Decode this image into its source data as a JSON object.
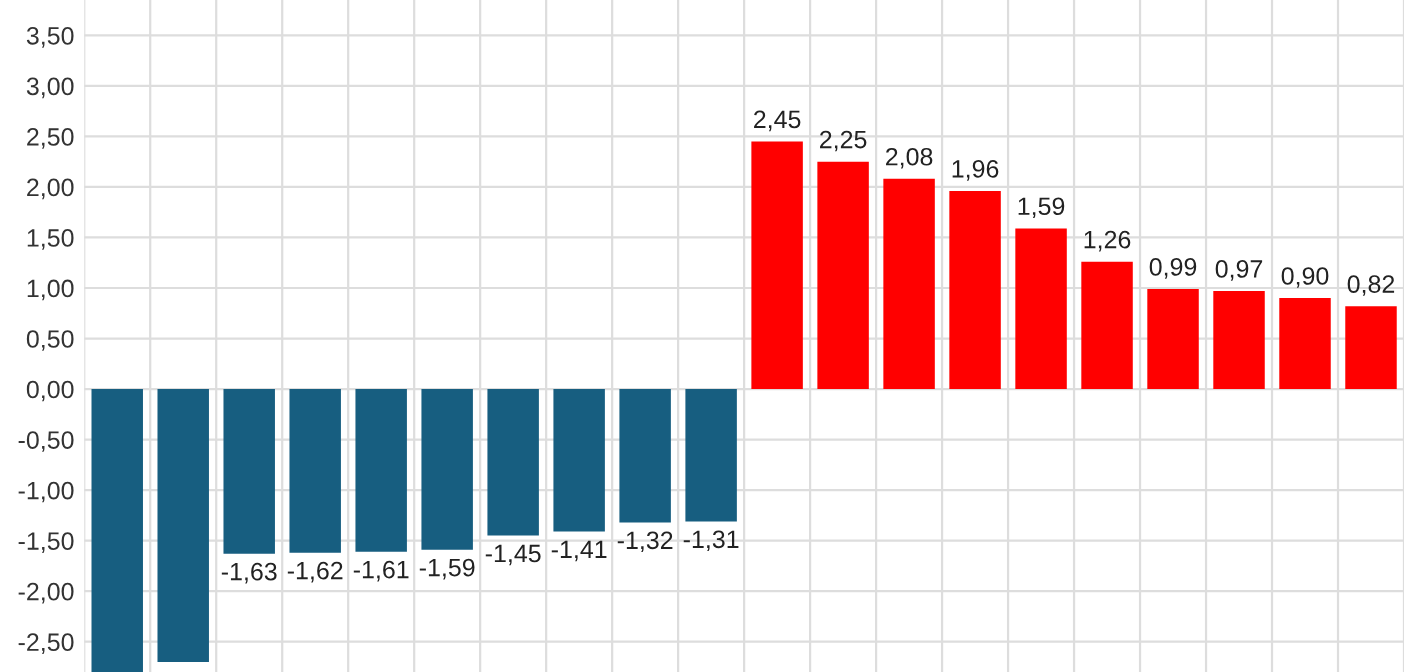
{
  "chart_data": {
    "type": "bar",
    "categories": [
      null,
      null,
      null,
      null,
      null,
      null,
      null,
      null,
      null,
      null,
      null,
      null,
      null,
      null,
      null,
      null,
      null,
      null,
      null,
      null
    ],
    "values": [
      -2.8,
      -2.7,
      -1.63,
      -1.62,
      -1.61,
      -1.59,
      -1.45,
      -1.41,
      -1.32,
      -1.31,
      2.45,
      2.25,
      2.08,
      1.96,
      1.59,
      1.26,
      0.99,
      0.97,
      0.9,
      0.82
    ],
    "value_labels": [
      null,
      null,
      "-1,63",
      "-1,62",
      "-1,61",
      "-1,59",
      "-1,45",
      "-1,41",
      "-1,32",
      "-1,31",
      "2,45",
      "2,25",
      "2,08",
      "1,96",
      "1,59",
      "1,26",
      "0,99",
      "0,97",
      "0,90",
      "0,82"
    ],
    "colors": [
      "#175e80",
      "#175e80",
      "#175e80",
      "#175e80",
      "#175e80",
      "#175e80",
      "#175e80",
      "#175e80",
      "#175e80",
      "#175e80",
      "#ff0000",
      "#ff0000",
      "#ff0000",
      "#ff0000",
      "#ff0000",
      "#ff0000",
      "#ff0000",
      "#ff0000",
      "#ff0000",
      "#ff0000"
    ],
    "ylim": [
      -2.8,
      3.85
    ],
    "yticks": [
      {
        "value": -2.5,
        "label": "-2,50"
      },
      {
        "value": -2,
        "label": "-2,00"
      },
      {
        "value": -1.5,
        "label": "-1,50"
      },
      {
        "value": -1,
        "label": "-1,00"
      },
      {
        "value": -0.5,
        "label": "-0,50"
      },
      {
        "value": 0,
        "label": "0,00"
      },
      {
        "value": 0.5,
        "label": "0,50"
      },
      {
        "value": 1,
        "label": "1,00"
      },
      {
        "value": 1.5,
        "label": "1,50"
      },
      {
        "value": 2,
        "label": "2,00"
      },
      {
        "value": 2.5,
        "label": "2,50"
      },
      {
        "value": 3,
        "label": "3,00"
      },
      {
        "value": 3.5,
        "label": "3,50"
      }
    ],
    "grid": true
  }
}
